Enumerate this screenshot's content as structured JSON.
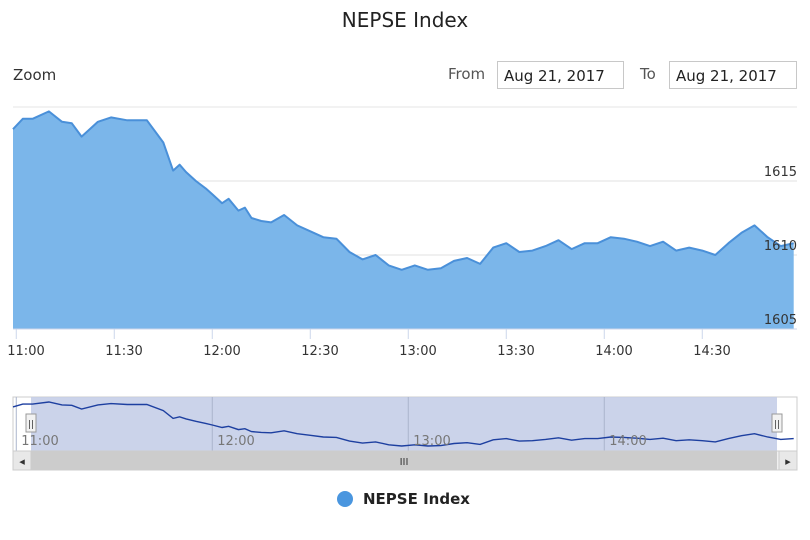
{
  "title": "NEPSE Index",
  "zoom_label": "Zoom",
  "range": {
    "from_label": "From",
    "from_value": "Aug 21, 2017",
    "to_label": "To",
    "to_value": "Aug 21, 2017"
  },
  "navigator": {
    "scroll_left_glyph": "◂",
    "scroll_right_glyph": "▸",
    "scroll_grip_glyph": "III",
    "handle_glyph": "||"
  },
  "colors": {
    "area_fill": "#7bb6ea",
    "line": "#4a90d9",
    "navigator_line": "#1d3fa0",
    "navigator_mask": "#c2cbe6"
  },
  "chart_data": {
    "type": "area",
    "title": "NEPSE Index",
    "series": [
      {
        "name": "NEPSE Index",
        "x": [
          "10:59",
          "11:02",
          "11:05",
          "11:10",
          "11:14",
          "11:17",
          "11:20",
          "11:25",
          "11:29",
          "11:34",
          "11:40",
          "11:45",
          "11:48",
          "11:50",
          "11:52",
          "11:55",
          "11:58",
          "12:00",
          "12:03",
          "12:05",
          "12:08",
          "12:10",
          "12:12",
          "12:15",
          "12:18",
          "12:22",
          "12:26",
          "12:30",
          "12:34",
          "12:38",
          "12:42",
          "12:46",
          "12:50",
          "12:54",
          "12:58",
          "13:02",
          "13:06",
          "13:10",
          "13:14",
          "13:18",
          "13:22",
          "13:26",
          "13:30",
          "13:34",
          "13:38",
          "13:42",
          "13:46",
          "13:50",
          "13:54",
          "13:58",
          "14:02",
          "14:06",
          "14:10",
          "14:14",
          "14:18",
          "14:22",
          "14:26",
          "14:30",
          "14:34",
          "14:38",
          "14:42",
          "14:46",
          "14:50",
          "14:54",
          "14:58"
        ],
        "y": [
          1618.5,
          1619.2,
          1619.2,
          1619.7,
          1619.0,
          1618.9,
          1618.0,
          1619.0,
          1619.3,
          1619.1,
          1619.1,
          1617.6,
          1615.7,
          1616.1,
          1615.6,
          1615.0,
          1614.5,
          1614.1,
          1613.5,
          1613.8,
          1613.0,
          1613.2,
          1612.5,
          1612.3,
          1612.2,
          1612.7,
          1612.0,
          1611.6,
          1611.2,
          1611.1,
          1610.2,
          1609.7,
          1610.0,
          1609.3,
          1609.0,
          1609.3,
          1609.0,
          1609.1,
          1609.6,
          1609.8,
          1609.4,
          1610.5,
          1610.8,
          1610.2,
          1610.3,
          1610.6,
          1611.0,
          1610.4,
          1610.8,
          1610.8,
          1611.2,
          1611.1,
          1610.9,
          1610.6,
          1610.9,
          1610.3,
          1610.5,
          1610.3,
          1610.0,
          1610.8,
          1611.5,
          1612.0,
          1611.2,
          1610.6,
          1610.8
        ]
      }
    ],
    "x_ticks": [
      "11:00",
      "11:30",
      "12:00",
      "12:30",
      "13:00",
      "13:30",
      "14:00",
      "14:30"
    ],
    "y_ticks": [
      "1605",
      "1610",
      "1615"
    ],
    "xlim": [
      "10:59",
      "14:59"
    ],
    "ylim": [
      1605,
      1620
    ],
    "navigator_ticks": [
      "11:00",
      "12:00",
      "13:00",
      "14:00"
    ],
    "legend": {
      "entries": [
        "NEPSE Index"
      ],
      "position": "bottom-center"
    },
    "grid": "horizontal"
  }
}
